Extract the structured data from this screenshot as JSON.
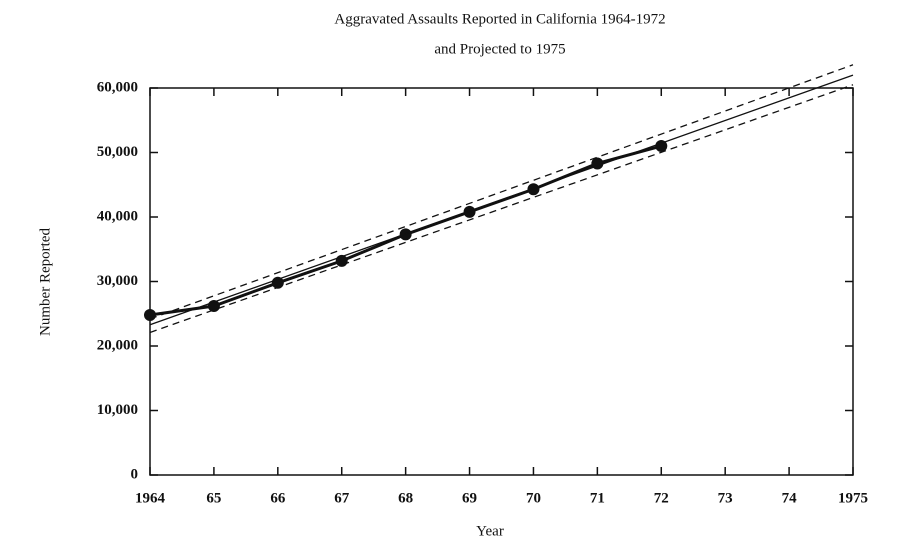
{
  "chart_data": {
    "type": "line",
    "title": "Aggravated Assaults Reported in California 1964-1972",
    "subtitle": "and Projected to 1975",
    "xlabel": "Year",
    "ylabel": "Number Reported",
    "xlim": [
      1964,
      1975
    ],
    "ylim": [
      0,
      60000
    ],
    "xticks": [
      {
        "value": 1964,
        "label": "1964"
      },
      {
        "value": 1965,
        "label": "65"
      },
      {
        "value": 1966,
        "label": "66"
      },
      {
        "value": 1967,
        "label": "67"
      },
      {
        "value": 1968,
        "label": "68"
      },
      {
        "value": 1969,
        "label": "69"
      },
      {
        "value": 1970,
        "label": "70"
      },
      {
        "value": 1971,
        "label": "71"
      },
      {
        "value": 1972,
        "label": "72"
      },
      {
        "value": 1973,
        "label": "73"
      },
      {
        "value": 1974,
        "label": "74"
      },
      {
        "value": 1975,
        "label": "1975"
      }
    ],
    "yticks": [
      0,
      {
        "value": 10000,
        "label": "10,000"
      },
      {
        "value": 20000,
        "label": "20,000"
      },
      {
        "value": 30000,
        "label": "30,000"
      },
      {
        "value": 40000,
        "label": "40,000"
      },
      {
        "value": 50000,
        "label": "50,000"
      },
      {
        "value": 60000,
        "label": "60,000"
      }
    ],
    "series": [
      {
        "color": "#111111",
        "style": "thick",
        "markers": true,
        "x": [
          1964,
          1965,
          1966,
          1967,
          1968,
          1969,
          1970,
          1971,
          1972
        ],
        "values": [
          24800,
          26200,
          29800,
          33200,
          37300,
          40800,
          44300,
          48300,
          51000
        ]
      },
      {
        "color": "#111111",
        "style": "solid",
        "markers": false,
        "x": [
          1964,
          1975
        ],
        "values": [
          23300,
          62000
        ]
      },
      {
        "color": "#111111",
        "style": "dashed",
        "markers": false,
        "x": [
          1964,
          1975
        ],
        "values": [
          24200,
          63600
        ]
      },
      {
        "color": "#111111",
        "style": "dashed",
        "markers": false,
        "x": [
          1964,
          1975
        ],
        "values": [
          22100,
          60500
        ]
      }
    ]
  }
}
